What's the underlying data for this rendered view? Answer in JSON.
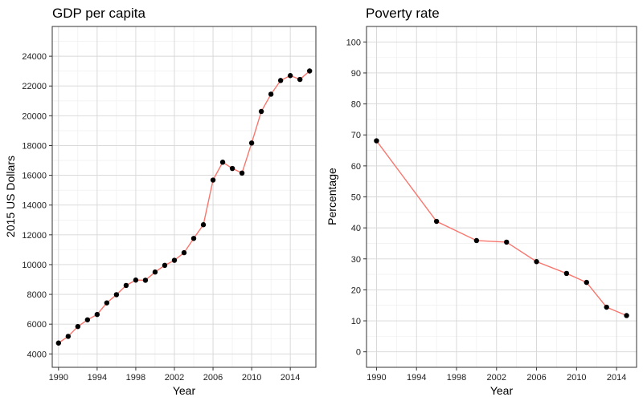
{
  "chart_data": [
    {
      "type": "line",
      "title": "GDP per capita",
      "xlabel": "Year",
      "ylabel": "2015 US Dollars",
      "xlim": [
        1989.35,
        2016.65
      ],
      "ylim": [
        3100,
        26000
      ],
      "x_ticks": [
        1990,
        1994,
        1998,
        2002,
        2006,
        2010,
        2014
      ],
      "y_ticks": [
        4000,
        6000,
        8000,
        10000,
        12000,
        14000,
        16000,
        18000,
        20000,
        22000,
        24000
      ],
      "grid": true,
      "line_color": "#f8766d",
      "point_color": "#000000",
      "series": [
        {
          "name": "GDP per capita",
          "x": [
            1990,
            1991,
            1992,
            1993,
            1994,
            1995,
            1996,
            1997,
            1998,
            1999,
            2000,
            2001,
            2002,
            2003,
            2004,
            2005,
            2006,
            2007,
            2008,
            2009,
            2010,
            2011,
            2012,
            2013,
            2014,
            2015,
            2016
          ],
          "y": [
            4730,
            5180,
            5840,
            6290,
            6650,
            7430,
            7980,
            8600,
            8960,
            8950,
            9500,
            9950,
            10290,
            10800,
            11760,
            12680,
            15680,
            16880,
            16460,
            16150,
            18170,
            20290,
            21450,
            22370,
            22700,
            22440,
            23010
          ]
        }
      ]
    },
    {
      "type": "line",
      "title": "Poverty rate",
      "xlabel": "Year",
      "ylabel": "Percentage",
      "xlim": [
        1989.0,
        2016.0
      ],
      "ylim": [
        -5,
        105
      ],
      "x_ticks": [
        1990,
        1994,
        1998,
        2002,
        2006,
        2010,
        2014
      ],
      "y_ticks": [
        0,
        10,
        20,
        30,
        40,
        50,
        60,
        70,
        80,
        90,
        100
      ],
      "grid": true,
      "line_color": "#f8766d",
      "point_color": "#000000",
      "series": [
        {
          "name": "Poverty rate",
          "x": [
            1990,
            1996,
            2000,
            2003,
            2006,
            2009,
            2011,
            2013,
            2015
          ],
          "y": [
            68.1,
            42.1,
            35.9,
            35.4,
            29.1,
            25.3,
            22.4,
            14.4,
            11.7
          ]
        }
      ]
    }
  ]
}
